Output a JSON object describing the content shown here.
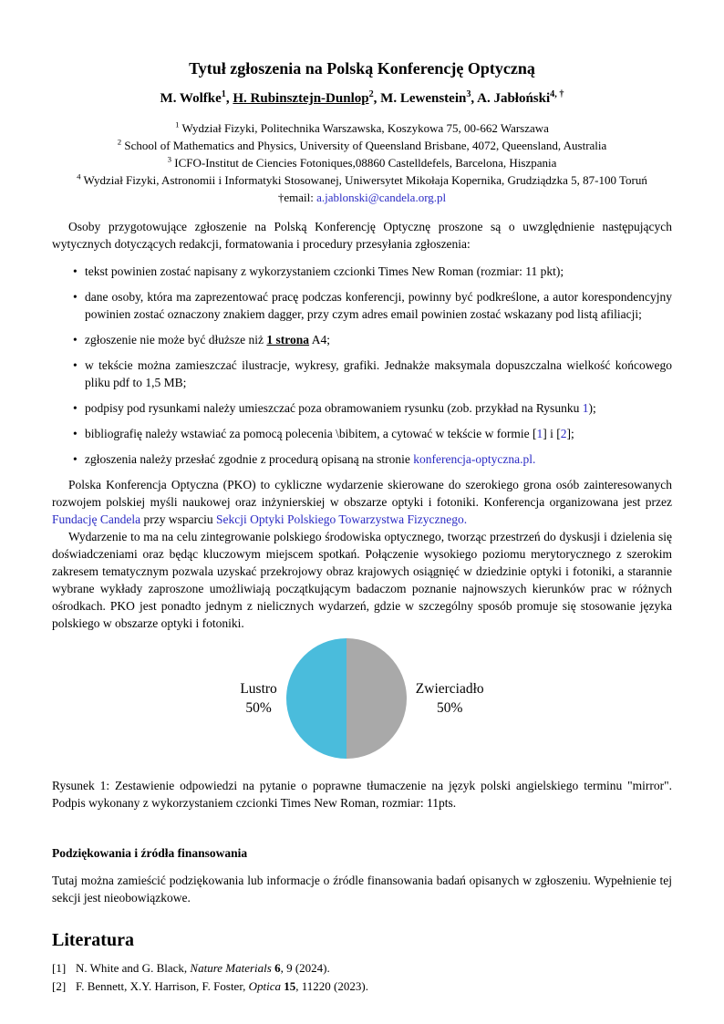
{
  "colors": {
    "link_blue": "#2a2ac4",
    "pie_cyan": "#4abcdc",
    "pie_gray": "#a9a9a9",
    "text": "#000000",
    "background": "#ffffff"
  },
  "header": {
    "title": "Tytuł zgłoszenia na Polską Konferencję Optyczną",
    "authors": [
      {
        "t": "M. Wolfke"
      },
      {
        "t": "1",
        "sup": true
      },
      {
        "t": ", "
      },
      {
        "t": "H. Rubinsztejn-Dunlop",
        "u": true
      },
      {
        "t": "2",
        "sup": true
      },
      {
        "t": ", "
      },
      {
        "t": "M. Lewenstein"
      },
      {
        "t": "3",
        "sup": true
      },
      {
        "t": ", "
      },
      {
        "t": "A. Jabłoński"
      },
      {
        "t": "4, †",
        "sup": true
      }
    ],
    "affiliations": [
      [
        {
          "t": "1",
          "sup": true
        },
        {
          "t": " Wydział Fizyki, Politechnika Warszawska, Koszykowa 75, 00-662 Warszawa"
        }
      ],
      [
        {
          "t": "2",
          "sup": true
        },
        {
          "t": " School of Mathematics and Physics, University of Queensland Brisbane, 4072, Queensland, Australia"
        }
      ],
      [
        {
          "t": "3",
          "sup": true
        },
        {
          "t": " ICFO-Institut de Ciencies Fotoniques,08860 Castelldefels, Barcelona, Hiszpania"
        }
      ],
      [
        {
          "t": "4",
          "sup": true
        },
        {
          "t": " Wydział Fizyki, Astronomii i Informatyki Stosowanej, Uniwersytet Mikołaja Kopernika, Grudziądzka 5, 87-100 Toruń"
        }
      ]
    ],
    "email_line": [
      {
        "t": "†email: "
      },
      {
        "t": "a.jablonski@candela.org.pl",
        "link": true
      }
    ]
  },
  "body": {
    "para1": "Osoby przygotowujące zgłoszenie na Polską Konferencję Optycznę proszone są o uwzględnienie następujących wytycznych dotyczących redakcji, formatowania i procedury przesyłania zgłoszenia:",
    "bullets": [
      [
        {
          "t": "tekst powinien zostać napisany z wykorzystaniem czcionki Times New Roman (rozmiar: 11 pkt);"
        }
      ],
      [
        {
          "t": "dane osoby, która ma zaprezentować pracę podczas konferencji, powinny być podkreślone, a autor korespondencyjny powinien zostać oznaczony znakiem dagger, przy czym adres email powinien zostać wskazany pod listą afiliacji;"
        }
      ],
      [
        {
          "t": "zgłoszenie nie może być dłuższe niż "
        },
        {
          "t": "1 strona",
          "b": true,
          "u": true
        },
        {
          "t": " A4;"
        }
      ],
      [
        {
          "t": "w tekście można zamieszczać ilustracje, wykresy, grafiki. Jednakże maksymala dopuszczalna wielkość końcowego pliku pdf to 1,5 MB;"
        }
      ],
      [
        {
          "t": "podpisy pod rysunkami należy umieszczać poza obramowaniem rysunku (zob. przykład na Rysunku "
        },
        {
          "t": "1",
          "link": true
        },
        {
          "t": ");"
        }
      ],
      [
        {
          "t": "bibliografię należy wstawiać za pomocą polecenia \\bibitem, a cytować w tekście w formie ["
        },
        {
          "t": "1",
          "link": true
        },
        {
          "t": "] i ["
        },
        {
          "t": "2",
          "link": true
        },
        {
          "t": "];"
        }
      ],
      [
        {
          "t": "zgłoszenia należy przesłać zgodnie z procedurą opisaną na stronie "
        },
        {
          "t": "konferencja-optyczna.pl.",
          "link": true
        }
      ]
    ],
    "para2": [
      {
        "t": "Polska Konferencja Optyczna (PKO) to cykliczne wydarzenie skierowane do szerokiego grona osób zainteresowanych rozwojem polskiej myśli naukowej oraz inżynierskiej w obszarze optyki i fotoniki. Konferencja organizowana jest przez "
      },
      {
        "t": "Fundację Candela",
        "link": true
      },
      {
        "t": " przy wsparciu "
      },
      {
        "t": "Sekcji Optyki Polskiego Towarzystwa Fizycznego.",
        "link": true
      }
    ],
    "para3": "Wydarzenie to ma na celu zintegrowanie polskiego środowiska optycznego, tworząc przestrzeń do dyskusji i dzielenia się doświadczeniami oraz będąc kluczowym miejscem spotkań. Połączenie wysokiego poziomu merytorycznego z szerokim zakresem tematycznym pozwala uzyskać przekrojowy obraz krajowych osiągnięć w dziedzinie optyki i fotoniki, a starannie wybrane wykłady zaproszone umożliwiają początkującym badaczom poznanie najnowszych kierunków prac w różnych ośrodkach. PKO jest ponadto jednym z nielicznych wydarzeń, gdzie w szczególny sposób promuje się stosowanie języka polskiego w obszarze optyki i fotoniki."
  },
  "chart_data": {
    "type": "pie",
    "title": "",
    "categories": [
      "Lustro",
      "Zwierciadło"
    ],
    "values": [
      50,
      50
    ],
    "slices": [
      {
        "label": "Lustro",
        "value": 50,
        "pct_label": "50%",
        "color": "#4abcdc",
        "side": "left"
      },
      {
        "label": "Zwierciadło",
        "value": 50,
        "pct_label": "50%",
        "color": "#a9a9a9",
        "side": "right"
      }
    ],
    "legend_position": "none",
    "labels_outside": true,
    "start_angle_deg": 90,
    "split": "vertical-half"
  },
  "figure": {
    "caption": "Rysunek 1:  Zestawienie odpowiedzi na pytanie o poprawne tłumaczenie na język polski angielskiego terminu \"mirror\". Podpis wykonany z wykorzystaniem czcionki Times New Roman, rozmiar: 11pts."
  },
  "acknowledgements": {
    "heading": "Podziękowania i źródła finansowania",
    "text": "Tutaj można zamieścić podziękowania lub informacje o źródle finansowania badań opisanych w zgłoszeniu. Wypełnienie tej sekcji jest nieobowiązkowe."
  },
  "literature": {
    "heading": "Literatura",
    "refs": [
      {
        "label": "[1]",
        "segments": [
          {
            "t": "N. White and G. Black, "
          },
          {
            "t": "Nature Materials",
            "i": true
          },
          {
            "t": " "
          },
          {
            "t": "6",
            "b": true
          },
          {
            "t": ", 9 (2024)."
          }
        ]
      },
      {
        "label": "[2]",
        "segments": [
          {
            "t": "F. Bennett, X.Y. Harrison, F. Foster, "
          },
          {
            "t": "Optica",
            "i": true
          },
          {
            "t": " "
          },
          {
            "t": "15",
            "b": true
          },
          {
            "t": ", 11220 (2023)."
          }
        ]
      }
    ]
  }
}
